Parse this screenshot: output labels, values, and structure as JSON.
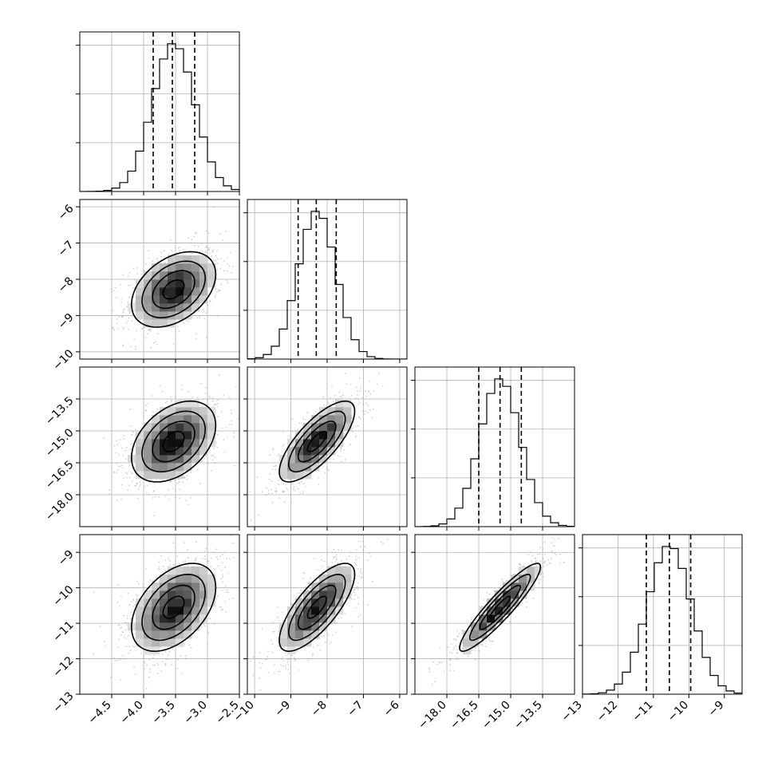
{
  "chart_data": {
    "type": "corner",
    "grid": true,
    "axes": [
      {
        "index": 0,
        "range": [
          -5.0,
          -2.5
        ],
        "ticks": [
          "-4.5",
          "-4.0",
          "-3.5",
          "-3.0",
          "-2.5"
        ],
        "tick_values": [
          -4.5,
          -4.0,
          -3.5,
          -3.0,
          -2.5
        ],
        "quantiles": [
          -3.85,
          -3.55,
          -3.2
        ],
        "mean": -3.53,
        "sd": 0.33
      },
      {
        "index": 1,
        "range": [
          -10.2,
          -5.8
        ],
        "ticks": [
          "-10",
          "-9",
          "-8",
          "-7",
          "-6"
        ],
        "tick_values": [
          -10,
          -9,
          -8,
          -7,
          -6
        ],
        "quantiles": [
          -8.8,
          -8.3,
          -7.75
        ],
        "mean": -8.28,
        "sd": 0.52
      },
      {
        "index": 2,
        "range": [
          -19.5,
          -12.0
        ],
        "ticks": [
          "-18.0",
          "-16.5",
          "-15.0",
          "-13.5"
        ],
        "tick_values": [
          -18.0,
          -16.5,
          -15.0,
          -13.5
        ],
        "quantiles": [
          -16.5,
          -15.5,
          -14.5
        ],
        "mean": -15.5,
        "sd": 0.95
      },
      {
        "index": 3,
        "range": [
          -13.0,
          -8.5
        ],
        "ticks": [
          "-13",
          "-12",
          "-11",
          "-10",
          "-9"
        ],
        "tick_values": [
          -13,
          -12,
          -11,
          -10,
          -9
        ],
        "quantiles": [
          -11.2,
          -10.55,
          -9.95
        ],
        "mean": -10.55,
        "sd": 0.62
      }
    ],
    "correlations": {
      "1_0": 0.4,
      "2_0": 0.4,
      "2_1": 0.75,
      "3_0": 0.45,
      "3_1": 0.75,
      "3_2": 0.92
    }
  }
}
